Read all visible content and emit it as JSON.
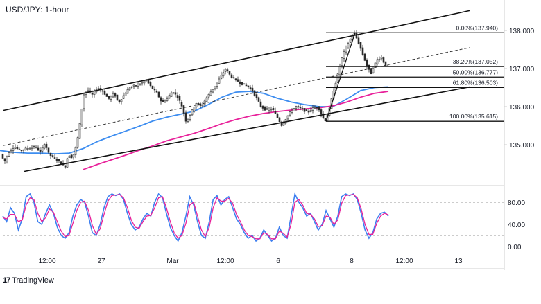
{
  "title": "USD/JPY: 1-hour",
  "brand": {
    "logo": "17",
    "name": "TradingView"
  },
  "colors": {
    "candle": "#2a2a2a",
    "ma_fast": "#3d8df0",
    "ma_slow": "#e8219a",
    "stoch_k": "#3d7ff0",
    "stoch_d": "#e8219a",
    "channel": "#111111",
    "grid": "#e8e8e8"
  },
  "chart_data": [
    {
      "type": "candlestick",
      "title": "USD/JPY: 1-hour",
      "y_ticks": [
        "138.000",
        "137.000",
        "136.000",
        "135.000"
      ],
      "x_ticks": [
        "12:00",
        "27",
        "Mar",
        "12:00",
        "6",
        "8",
        "12:00",
        "13"
      ],
      "ylim": [
        134.3,
        138.7
      ],
      "price_path": [
        [
          0,
          134.85
        ],
        [
          8,
          134.55
        ],
        [
          14,
          134.8
        ],
        [
          22,
          134.95
        ],
        [
          30,
          134.85
        ],
        [
          40,
          134.9
        ],
        [
          52,
          134.95
        ],
        [
          60,
          134.8
        ],
        [
          66,
          135.05
        ],
        [
          72,
          134.75
        ],
        [
          80,
          134.65
        ],
        [
          88,
          134.55
        ],
        [
          95,
          134.4
        ],
        [
          100,
          134.75
        ],
        [
          106,
          134.65
        ],
        [
          112,
          135.0
        ],
        [
          117,
          135.6
        ],
        [
          122,
          136.3
        ],
        [
          127,
          136.45
        ],
        [
          134,
          136.3
        ],
        [
          142,
          136.5
        ],
        [
          150,
          136.4
        ],
        [
          158,
          136.2
        ],
        [
          166,
          136.35
        ],
        [
          172,
          136.1
        ],
        [
          180,
          136.3
        ],
        [
          188,
          136.5
        ],
        [
          196,
          136.55
        ],
        [
          204,
          136.6
        ],
        [
          212,
          136.7
        ],
        [
          220,
          136.5
        ],
        [
          228,
          136.35
        ],
        [
          235,
          136.1
        ],
        [
          242,
          136.2
        ],
        [
          250,
          136.4
        ],
        [
          258,
          136.25
        ],
        [
          264,
          136.0
        ],
        [
          270,
          135.6
        ],
        [
          276,
          135.8
        ],
        [
          284,
          136.1
        ],
        [
          292,
          136.0
        ],
        [
          298,
          136.2
        ],
        [
          306,
          136.4
        ],
        [
          314,
          136.6
        ],
        [
          320,
          136.8
        ],
        [
          327,
          137.0
        ],
        [
          334,
          136.8
        ],
        [
          342,
          136.7
        ],
        [
          350,
          136.6
        ],
        [
          358,
          136.55
        ],
        [
          366,
          136.4
        ],
        [
          372,
          136.2
        ],
        [
          378,
          136.0
        ],
        [
          386,
          135.9
        ],
        [
          394,
          135.95
        ],
        [
          402,
          135.7
        ],
        [
          408,
          135.5
        ],
        [
          414,
          135.7
        ],
        [
          420,
          135.85
        ],
        [
          428,
          136.0
        ],
        [
          436,
          135.95
        ],
        [
          444,
          135.85
        ],
        [
          452,
          135.95
        ],
        [
          460,
          136.0
        ],
        [
          466,
          135.75
        ],
        [
          470,
          135.62
        ],
        [
          476,
          135.9
        ],
        [
          482,
          136.4
        ],
        [
          488,
          136.8
        ],
        [
          494,
          137.25
        ],
        [
          500,
          137.55
        ],
        [
          506,
          137.75
        ],
        [
          512,
          137.94
        ],
        [
          518,
          137.7
        ],
        [
          524,
          137.4
        ],
        [
          530,
          137.1
        ],
        [
          536,
          136.85
        ],
        [
          540,
          137.05
        ],
        [
          546,
          137.25
        ],
        [
          552,
          137.3
        ],
        [
          556,
          137.1
        ],
        [
          560,
          137.05
        ]
      ],
      "series": [
        {
          "name": "",
          "role": "ma_fast",
          "points": [
            [
              0,
              134.85
            ],
            [
              20,
              134.8
            ],
            [
              40,
              134.78
            ],
            [
              60,
              134.78
            ],
            [
              80,
              134.76
            ],
            [
              100,
              134.78
            ],
            [
              120,
              134.9
            ],
            [
              140,
              135.08
            ],
            [
              160,
              135.22
            ],
            [
              180,
              135.35
            ],
            [
              200,
              135.48
            ],
            [
              220,
              135.62
            ],
            [
              240,
              135.72
            ],
            [
              260,
              135.8
            ],
            [
              280,
              135.88
            ],
            [
              300,
              136.05
            ],
            [
              320,
              136.25
            ],
            [
              340,
              136.38
            ],
            [
              360,
              136.4
            ],
            [
              380,
              136.35
            ],
            [
              400,
              136.22
            ],
            [
              420,
              136.12
            ],
            [
              440,
              136.05
            ],
            [
              460,
              136.0
            ],
            [
              480,
              136.0
            ],
            [
              500,
              136.2
            ],
            [
              520,
              136.42
            ],
            [
              540,
              136.5
            ],
            [
              560,
              136.52
            ]
          ]
        },
        {
          "name": "",
          "role": "ma_slow",
          "points": [
            [
              120,
              134.35
            ],
            [
              140,
              134.48
            ],
            [
              160,
              134.6
            ],
            [
              180,
              134.72
            ],
            [
              200,
              134.85
            ],
            [
              220,
              134.97
            ],
            [
              240,
              135.1
            ],
            [
              260,
              135.2
            ],
            [
              280,
              135.3
            ],
            [
              300,
              135.42
            ],
            [
              320,
              135.55
            ],
            [
              340,
              135.66
            ],
            [
              360,
              135.75
            ],
            [
              380,
              135.82
            ],
            [
              400,
              135.87
            ],
            [
              420,
              135.91
            ],
            [
              440,
              135.94
            ],
            [
              460,
              135.97
            ],
            [
              480,
              136.02
            ],
            [
              500,
              136.12
            ],
            [
              520,
              136.25
            ],
            [
              540,
              136.35
            ],
            [
              560,
              136.4
            ]
          ]
        }
      ],
      "fibonacci": {
        "levels": [
          {
            "pct": "0.00%",
            "price": 137.94,
            "label": "0.00%(137.940)"
          },
          {
            "pct": "38.20%",
            "price": 137.052,
            "label": "38.20%(137.052)"
          },
          {
            "pct": "50.00%",
            "price": 136.777,
            "label": "50.00%(136.777)"
          },
          {
            "pct": "61.80%",
            "price": 136.503,
            "label": "61.80%(136.503)"
          },
          {
            "pct": "100.00%",
            "price": 135.615,
            "label": "100.00%(135.615)"
          }
        ]
      },
      "channel": {
        "upper": [
          [
            5,
            135.9
          ],
          [
            677,
            138.52
          ]
        ],
        "lower": [
          [
            35,
            134.3
          ],
          [
            678,
            136.52
          ]
        ],
        "middle": [
          [
            5,
            134.98
          ],
          [
            677,
            137.55
          ]
        ]
      }
    },
    {
      "type": "line",
      "title": "",
      "y_ticks": [
        "80.00",
        "40.00",
        "0.00"
      ],
      "ylim": [
        0,
        100
      ],
      "overbought": 80,
      "oversold": 20,
      "series": [
        {
          "name": "",
          "role": "stoch_k",
          "values": [
            55,
            45,
            70,
            60,
            30,
            50,
            90,
            95,
            80,
            45,
            40,
            60,
            75,
            60,
            35,
            20,
            15,
            25,
            55,
            75,
            85,
            80,
            55,
            25,
            20,
            40,
            70,
            90,
            95,
            92,
            95,
            85,
            60,
            40,
            30,
            35,
            50,
            60,
            55,
            80,
            95,
            88,
            60,
            35,
            20,
            10,
            25,
            55,
            90,
            75,
            45,
            20,
            15,
            45,
            85,
            92,
            75,
            85,
            90,
            70,
            50,
            40,
            25,
            15,
            20,
            10,
            15,
            30,
            20,
            10,
            15,
            35,
            20,
            15,
            55,
            95,
            80,
            70,
            55,
            60,
            45,
            30,
            40,
            65,
            50,
            35,
            55,
            90,
            95,
            92,
            95,
            85,
            60,
            30,
            15,
            25,
            50,
            60,
            62,
            55
          ]
        },
        {
          "name": "",
          "role": "stoch_d",
          "values": [
            52,
            50,
            58,
            58,
            45,
            48,
            75,
            88,
            85,
            60,
            45,
            52,
            68,
            62,
            45,
            28,
            18,
            20,
            42,
            65,
            80,
            82,
            65,
            38,
            22,
            32,
            58,
            82,
            92,
            93,
            94,
            88,
            70,
            48,
            35,
            33,
            45,
            55,
            56,
            70,
            88,
            90,
            70,
            45,
            25,
            15,
            20,
            42,
            75,
            80,
            55,
            30,
            18,
            35,
            70,
            88,
            82,
            82,
            87,
            78,
            58,
            45,
            30,
            20,
            18,
            14,
            14,
            25,
            22,
            14,
            14,
            28,
            24,
            17,
            40,
            80,
            85,
            75,
            60,
            58,
            50,
            36,
            38,
            55,
            53,
            40,
            48,
            78,
            92,
            93,
            94,
            88,
            68,
            40,
            22,
            22,
            42,
            55,
            60,
            57
          ]
        }
      ]
    }
  ]
}
